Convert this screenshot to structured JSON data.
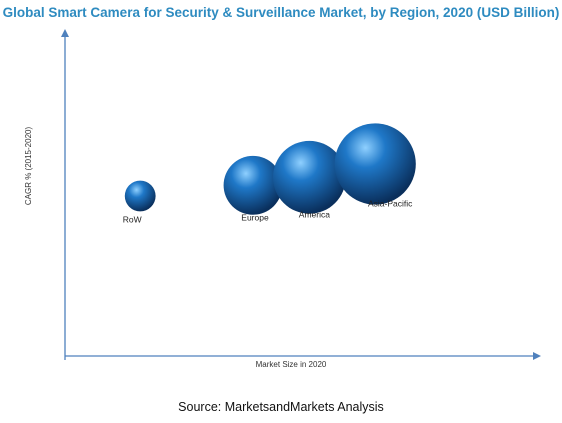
{
  "colors": {
    "title": "#2e8bc0",
    "axis": "#4f81bd",
    "bubble_highlight": "#8fd0ff",
    "bubble_mid": "#1f78c8",
    "bubble_dark": "#0a2f5c"
  },
  "chart_data": {
    "type": "bubble",
    "title": "Global Smart Camera for Security & Surveillance Market, by Region, 2020 (USD Billion)",
    "xlabel": "Market Size in 2020",
    "ylabel": "CAGR % (2015-2020)",
    "grid": false,
    "legend": false,
    "axis_ticks": false,
    "points": [
      {
        "label": "RoW",
        "x": 0.8,
        "y": 3.0,
        "size": 0.55
      },
      {
        "label": "Europe",
        "x": 2.0,
        "y": 3.2,
        "size": 1.05
      },
      {
        "label": "America",
        "x": 2.6,
        "y": 3.35,
        "size": 1.3
      },
      {
        "label": "Asia-Pacific",
        "x": 3.3,
        "y": 3.6,
        "size": 1.45
      }
    ],
    "xlim": [
      0,
      5.0
    ],
    "ylim": [
      0,
      6.0
    ]
  },
  "footer": {
    "source": "Source: MarketsandMarkets Analysis"
  }
}
